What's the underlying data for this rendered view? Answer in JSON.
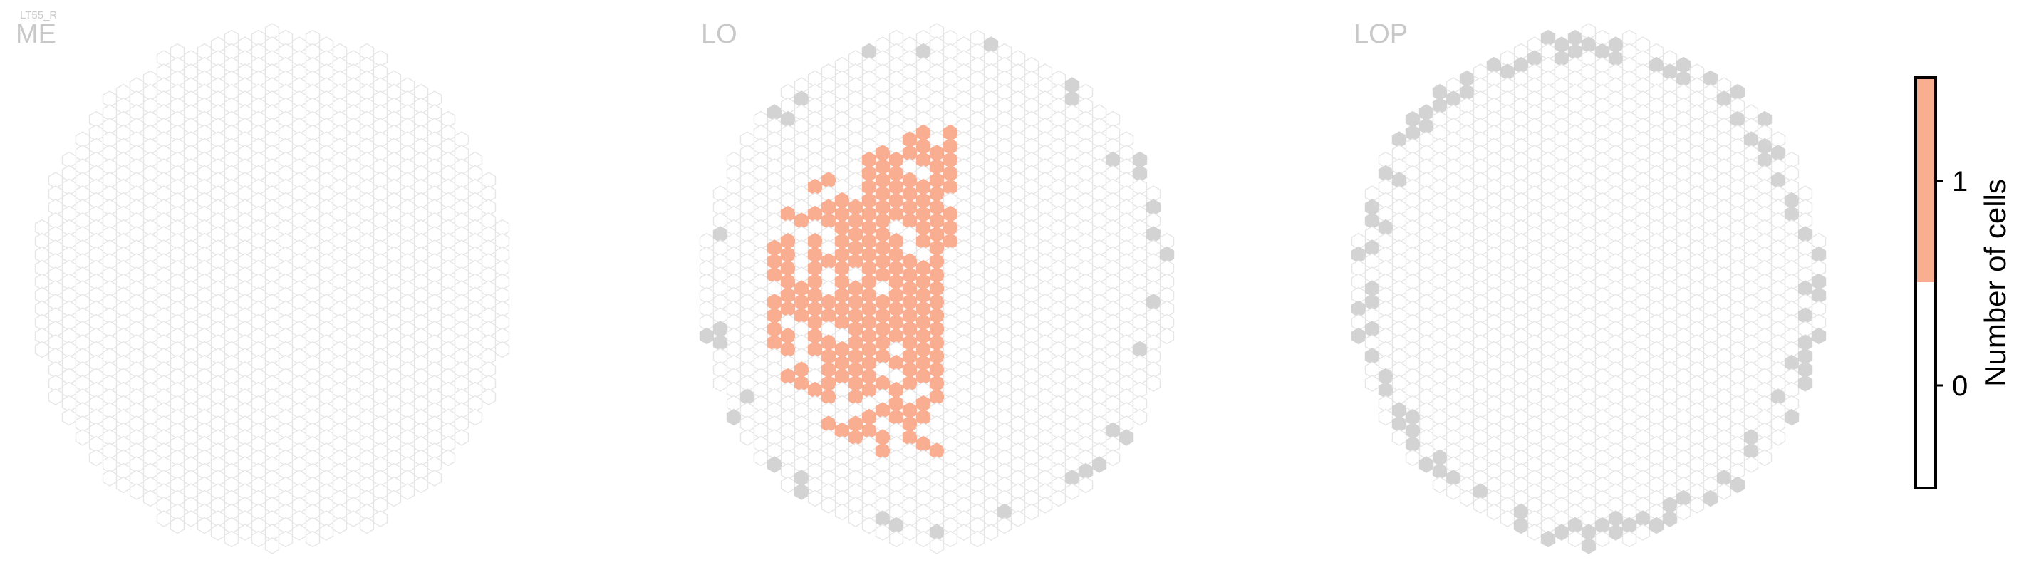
{
  "figure": {
    "cell_type": "LT55_R"
  },
  "chart_data": {
    "type": "heatmap",
    "colors": {
      "count_0": "#ffffff",
      "count_1": "#f9ad91",
      "outside_neuropil": "#d3d3d3",
      "hex_outline": "#e6e6e6"
    },
    "panels": [
      {
        "name": "ME",
        "highlighted_cells": 0
      },
      {
        "name": "LO",
        "highlighted_cells": 200
      },
      {
        "name": "LOP",
        "highlighted_cells": 0
      }
    ],
    "colorbar": {
      "label": "Number of cells",
      "ticks": [
        "0",
        "1"
      ],
      "range": [
        -0.5,
        1.5
      ]
    }
  }
}
